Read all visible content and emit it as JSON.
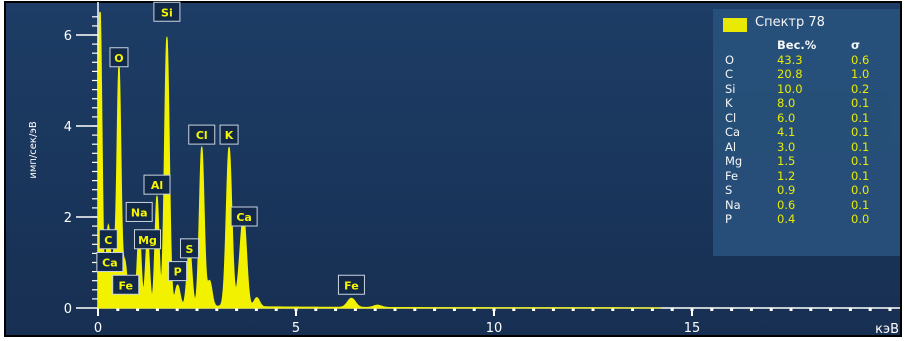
{
  "chart_data": {
    "type": "line",
    "title": "",
    "xlabel": "кэВ",
    "ylabel": "имп/сек/эВ",
    "xlim": [
      0,
      20.4
    ],
    "ylim": [
      0,
      6.5
    ],
    "x_ticks": [
      0,
      5,
      10,
      15
    ],
    "y_ticks": [
      0,
      2,
      4,
      6
    ],
    "grid": false,
    "colors": {
      "background": "#1a3a63",
      "spectrum": "#f2f200",
      "axes": "#ffffff"
    },
    "spectrum_peaks": [
      {
        "x": 0.05,
        "y": 6.5,
        "w": 0.05
      },
      {
        "x": 0.26,
        "y": 1.7,
        "w": 0.05
      },
      {
        "x": 0.4,
        "y": 1.0,
        "w": 0.05
      },
      {
        "x": 0.53,
        "y": 5.2,
        "w": 0.05
      },
      {
        "x": 0.68,
        "y": 0.9,
        "w": 0.05
      },
      {
        "x": 0.83,
        "y": 0.45,
        "w": 0.05
      },
      {
        "x": 1.04,
        "y": 1.6,
        "w": 0.05
      },
      {
        "x": 1.25,
        "y": 1.45,
        "w": 0.05
      },
      {
        "x": 1.49,
        "y": 2.4,
        "w": 0.05
      },
      {
        "x": 1.74,
        "y": 5.9,
        "w": 0.06
      },
      {
        "x": 2.01,
        "y": 0.45,
        "w": 0.06
      },
      {
        "x": 2.31,
        "y": 1.3,
        "w": 0.06
      },
      {
        "x": 2.62,
        "y": 3.5,
        "w": 0.06
      },
      {
        "x": 2.82,
        "y": 0.55,
        "w": 0.06
      },
      {
        "x": 3.31,
        "y": 3.5,
        "w": 0.07
      },
      {
        "x": 3.59,
        "y": 0.7,
        "w": 0.07
      },
      {
        "x": 3.69,
        "y": 1.7,
        "w": 0.07
      },
      {
        "x": 4.01,
        "y": 0.2,
        "w": 0.07
      },
      {
        "x": 6.4,
        "y": 0.2,
        "w": 0.1
      },
      {
        "x": 7.06,
        "y": 0.05,
        "w": 0.1
      }
    ],
    "peak_labels": [
      {
        "text": "Si",
        "x": 1.74,
        "y": 6.5
      },
      {
        "text": "O",
        "x": 0.53,
        "y": 5.5
      },
      {
        "text": "Cl",
        "x": 2.62,
        "y": 3.8
      },
      {
        "text": "K",
        "x": 3.31,
        "y": 3.8
      },
      {
        "text": "Al",
        "x": 1.49,
        "y": 2.7
      },
      {
        "text": "Na",
        "x": 1.04,
        "y": 2.1
      },
      {
        "text": "Ca",
        "x": 3.69,
        "y": 2.0
      },
      {
        "text": "Mg",
        "x": 1.25,
        "y": 1.5
      },
      {
        "text": "C",
        "x": 0.26,
        "y": 1.5
      },
      {
        "text": "S",
        "x": 2.31,
        "y": 1.3
      },
      {
        "text": "Ca",
        "x": 0.3,
        "y": 1.0
      },
      {
        "text": "P",
        "x": 2.01,
        "y": 0.8
      },
      {
        "text": "Fe",
        "x": 0.7,
        "y": 0.5
      },
      {
        "text": "Fe",
        "x": 6.4,
        "y": 0.5
      }
    ],
    "legend": {
      "name": "Спектр 78",
      "columns": [
        "",
        "Вес.%",
        "σ"
      ],
      "rows": [
        {
          "element": "O",
          "wt": "43.3",
          "sigma": "0.6"
        },
        {
          "element": "C",
          "wt": "20.8",
          "sigma": "1.0"
        },
        {
          "element": "Si",
          "wt": "10.0",
          "sigma": "0.2"
        },
        {
          "element": "K",
          "wt": "8.0",
          "sigma": "0.1"
        },
        {
          "element": "Cl",
          "wt": "6.0",
          "sigma": "0.1"
        },
        {
          "element": "Ca",
          "wt": "4.1",
          "sigma": "0.1"
        },
        {
          "element": "Al",
          "wt": "3.0",
          "sigma": "0.1"
        },
        {
          "element": "Mg",
          "wt": "1.5",
          "sigma": "0.1"
        },
        {
          "element": "Fe",
          "wt": "1.2",
          "sigma": "0.1"
        },
        {
          "element": "S",
          "wt": "0.9",
          "sigma": "0.0"
        },
        {
          "element": "Na",
          "wt": "0.6",
          "sigma": "0.1"
        },
        {
          "element": "P",
          "wt": "0.4",
          "sigma": "0.0"
        }
      ]
    }
  }
}
